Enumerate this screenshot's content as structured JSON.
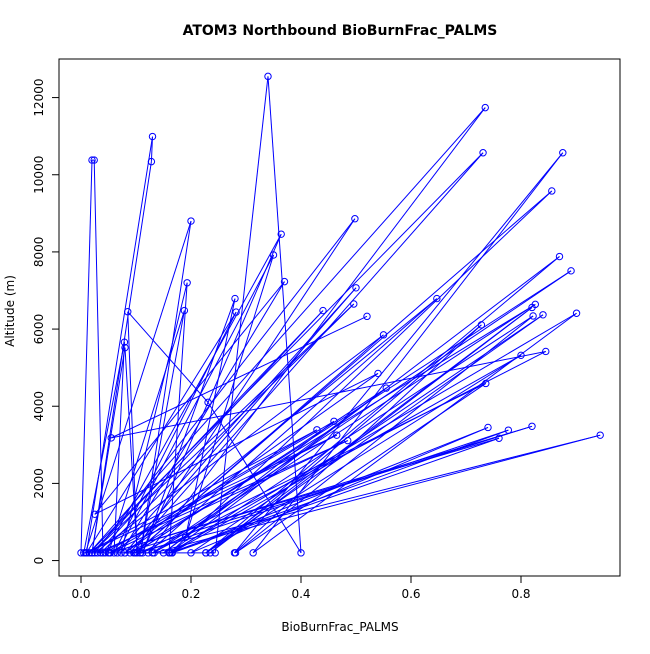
{
  "chart_data": {
    "type": "line",
    "title": "ATOM3 Northbound BioBurnFrac_PALMS",
    "xlabel": "BioBurnFrac_PALMS",
    "ylabel": "Altitude (m)",
    "xlim": [
      -0.04,
      0.98
    ],
    "ylim": [
      -400,
      13000
    ],
    "xticks": [
      0.0,
      0.2,
      0.4,
      0.6,
      0.8
    ],
    "xtick_labels": [
      "0.0",
      "0.2",
      "0.4",
      "0.6",
      "0.8"
    ],
    "yticks": [
      0,
      2000,
      4000,
      6000,
      8000,
      10000,
      12000
    ],
    "ytick_labels": [
      "0",
      "2000",
      "4000",
      "6000",
      "8000",
      "10000",
      "12000"
    ],
    "grid": false,
    "legend": "none",
    "line_style": "points connected by lines",
    "color": "#0000ff",
    "series": [
      {
        "x": [
          0.0,
          0.02,
          0.024,
          0.04,
          0.005,
          0.079,
          0.06,
          0.282,
          0.01,
          0.13,
          0.128,
          0.02,
          0.08,
          0.102,
          0.085,
          0.231,
          0.4,
          0.34,
          0.244,
          0.008,
          0.2,
          0.108,
          0.188,
          0.05,
          0.16,
          0.193,
          0.073,
          0.37,
          0.025,
          0.54,
          0.08,
          0.5,
          0.066,
          0.35,
          0.19,
          0.28,
          0.112,
          0.364,
          0.044,
          0.429,
          0.01,
          0.465,
          0.036,
          0.496,
          0.02,
          0.44,
          0.03,
          0.485,
          0.052,
          0.46,
          0.15,
          0.555,
          0.099,
          0.55,
          0.025,
          0.498,
          0.096,
          0.944,
          0.133,
          0.826,
          0.089,
          0.731,
          0.015,
          0.735,
          0.122,
          0.647,
          0.08,
          0.82,
          0.053,
          0.76,
          0.166,
          0.74,
          0.2,
          0.84,
          0.227,
          0.82,
          0.235,
          0.728,
          0.279,
          0.876,
          0.313,
          0.901,
          0.161,
          0.87,
          0.227,
          0.8,
          0.165,
          0.822,
          0.281,
          0.736,
          0.108,
          0.777,
          0.162,
          0.856,
          0.098,
          0.891,
          0.13,
          0.845,
          0.055,
          0.52
        ],
        "y": [
          200,
          10380,
          10380,
          200,
          200,
          5660,
          200,
          6440,
          200,
          10990,
          10340,
          200,
          5520,
          200,
          6450,
          4100,
          200,
          12550,
          200,
          200,
          8800,
          200,
          6480,
          200,
          200,
          7200,
          200,
          7230,
          1200,
          4850,
          200,
          7070,
          200,
          7920,
          600,
          6790,
          200,
          8460,
          200,
          3390,
          200,
          3250,
          200,
          6650,
          200,
          6480,
          200,
          3110,
          200,
          3610,
          200,
          4470,
          200,
          5850,
          200,
          8860,
          200,
          3250,
          200,
          6640,
          200,
          10570,
          200,
          11740,
          200,
          6790,
          200,
          3480,
          200,
          3170,
          200,
          3450,
          200,
          6370,
          200,
          6560,
          200,
          6110,
          200,
          10570,
          200,
          6410,
          200,
          7880,
          200,
          5320,
          200,
          6340,
          200,
          4590,
          200,
          3380,
          200,
          9580,
          200,
          7510,
          200,
          5420,
          3180,
          6330
        ]
      }
    ]
  }
}
